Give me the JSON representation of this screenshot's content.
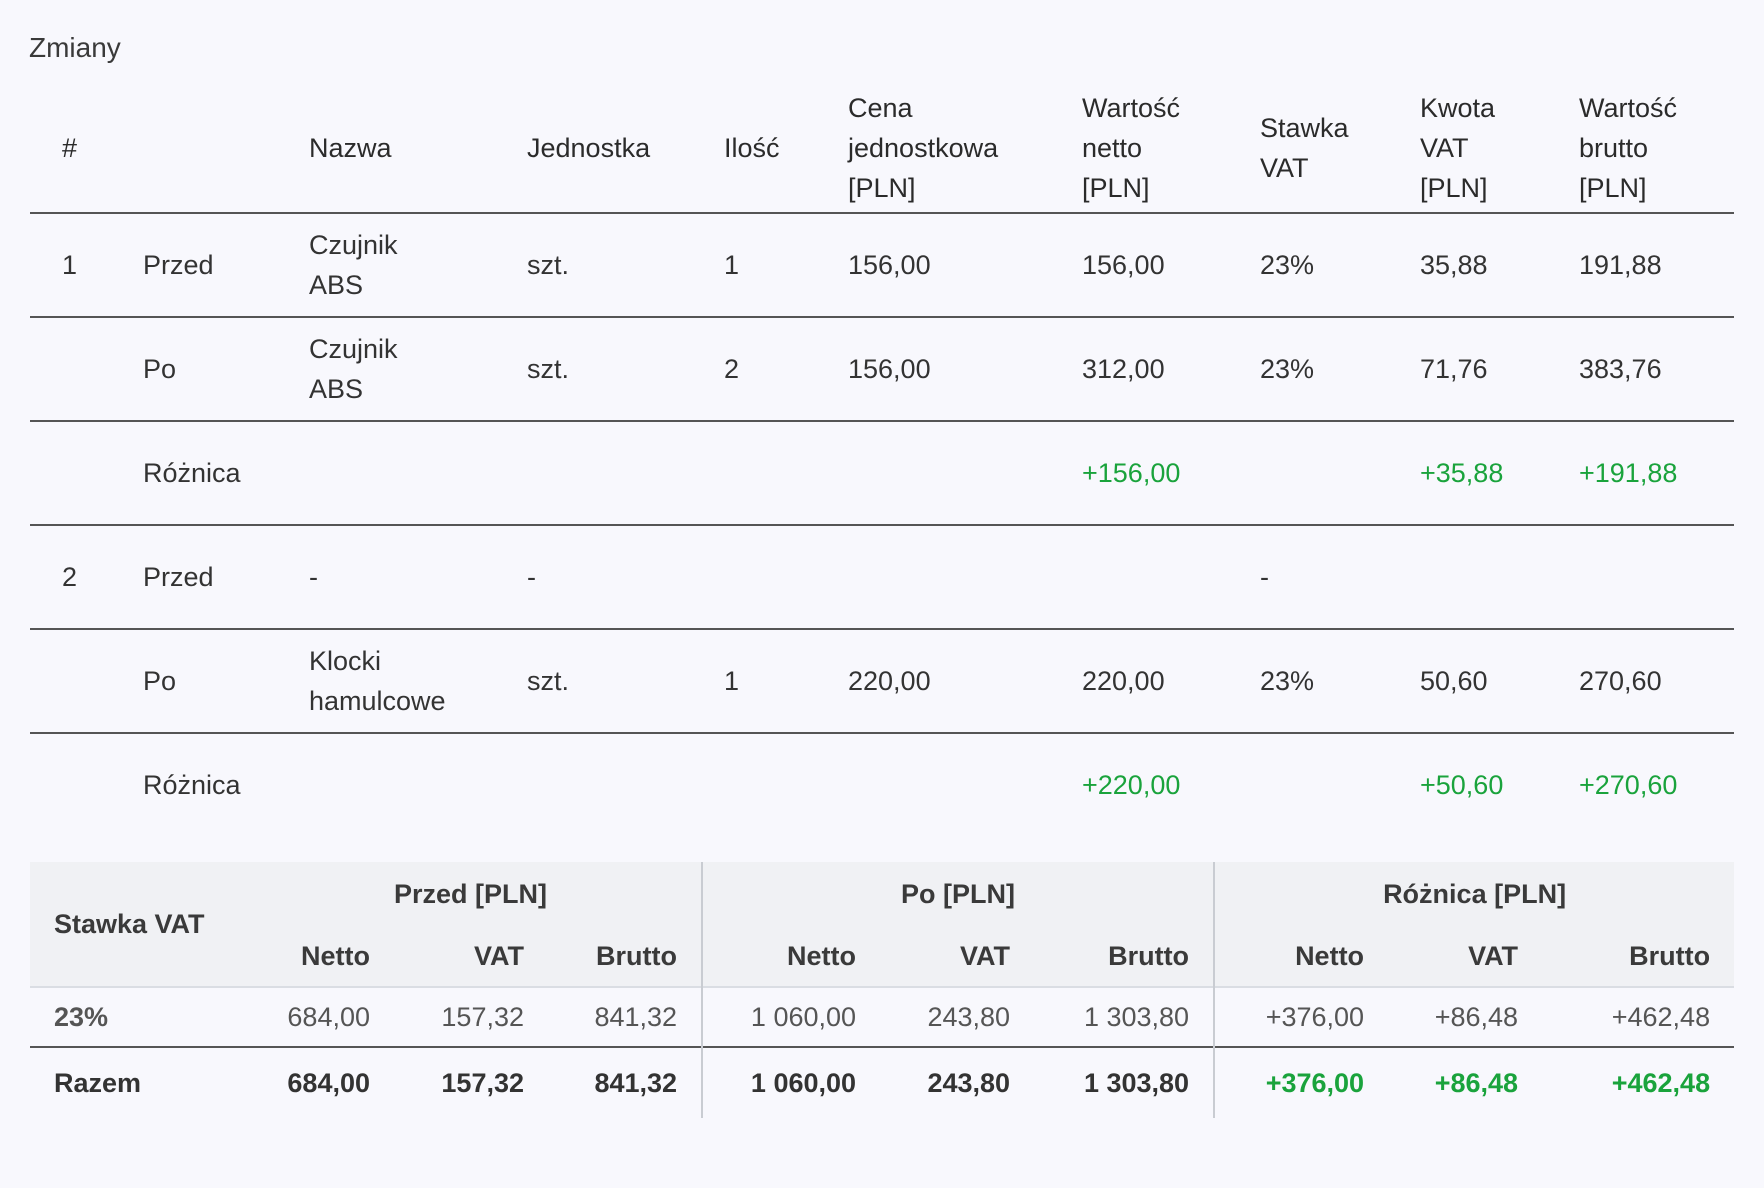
{
  "title": "Zmiany",
  "changes": {
    "headers": {
      "num": "#",
      "nazwa": "Nazwa",
      "jednostka": "Jednostka",
      "ilosc": "Ilość",
      "cena_l1": "Cena",
      "cena_l2": "jednostkowa",
      "cena_l3": "[PLN]",
      "netto_l1": "Wartość",
      "netto_l2": "netto",
      "netto_l3": "[PLN]",
      "stawka_l1": "Stawka",
      "stawka_l2": "VAT",
      "kwota_l1": "Kwota",
      "kwota_l2": "VAT",
      "kwota_l3": "[PLN]",
      "brutto_l1": "Wartość",
      "brutto_l2": "brutto",
      "brutto_l3": "[PLN]"
    },
    "rows": [
      {
        "num": "1",
        "state": "Przed",
        "name_l1": "Czujnik",
        "name_l2": "ABS",
        "unit": "szt.",
        "qty": "1",
        "price": "156,00",
        "netto": "156,00",
        "rate": "23%",
        "vat": "35,88",
        "brutto": "191,88"
      },
      {
        "num": "",
        "state": "Po",
        "name_l1": "Czujnik",
        "name_l2": "ABS",
        "unit": "szt.",
        "qty": "2",
        "price": "156,00",
        "netto": "312,00",
        "rate": "23%",
        "vat": "71,76",
        "brutto": "383,76"
      },
      {
        "num": "",
        "state": "Różnica",
        "name_l1": "",
        "name_l2": "",
        "unit": "",
        "qty": "",
        "price": "",
        "netto": "+156,00",
        "rate": "",
        "vat": "+35,88",
        "brutto": "+191,88"
      },
      {
        "num": "2",
        "state": "Przed",
        "name_l1": "-",
        "name_l2": "",
        "unit": "-",
        "qty": "",
        "price": "",
        "netto": "",
        "rate": "-",
        "vat": "",
        "brutto": ""
      },
      {
        "num": "",
        "state": "Po",
        "name_l1": "Klocki",
        "name_l2": "hamulcowe",
        "unit": "szt.",
        "qty": "1",
        "price": "220,00",
        "netto": "220,00",
        "rate": "23%",
        "vat": "50,60",
        "brutto": "270,60"
      },
      {
        "num": "",
        "state": "Różnica",
        "name_l1": "",
        "name_l2": "",
        "unit": "",
        "qty": "",
        "price": "",
        "netto": "+220,00",
        "rate": "",
        "vat": "+50,60",
        "brutto": "+270,60"
      }
    ]
  },
  "summary": {
    "vat_label": "Stawka VAT",
    "groups": {
      "before": "Przed [PLN]",
      "after": "Po [PLN]",
      "diff": "Różnica [PLN]"
    },
    "sub": {
      "netto": "Netto",
      "vat": "VAT",
      "brutto": "Brutto"
    },
    "rows": [
      {
        "label": "23%",
        "b_netto": "684,00",
        "b_vat": "157,32",
        "b_brutto": "841,32",
        "a_netto": "1 060,00",
        "a_vat": "243,80",
        "a_brutto": "1 303,80",
        "d_netto": "+376,00",
        "d_vat": "+86,48",
        "d_brutto": "+462,48"
      }
    ],
    "total": {
      "label": "Razem",
      "b_netto": "684,00",
      "b_vat": "157,32",
      "b_brutto": "841,32",
      "a_netto": "1 060,00",
      "a_vat": "243,80",
      "a_brutto": "1 303,80",
      "d_netto": "+376,00",
      "d_vat": "+86,48",
      "d_brutto": "+462,48"
    }
  },
  "colors": {
    "positive": "#1aa33c",
    "background": "#f8f8fd",
    "header_bg": "#f0f1f4"
  }
}
